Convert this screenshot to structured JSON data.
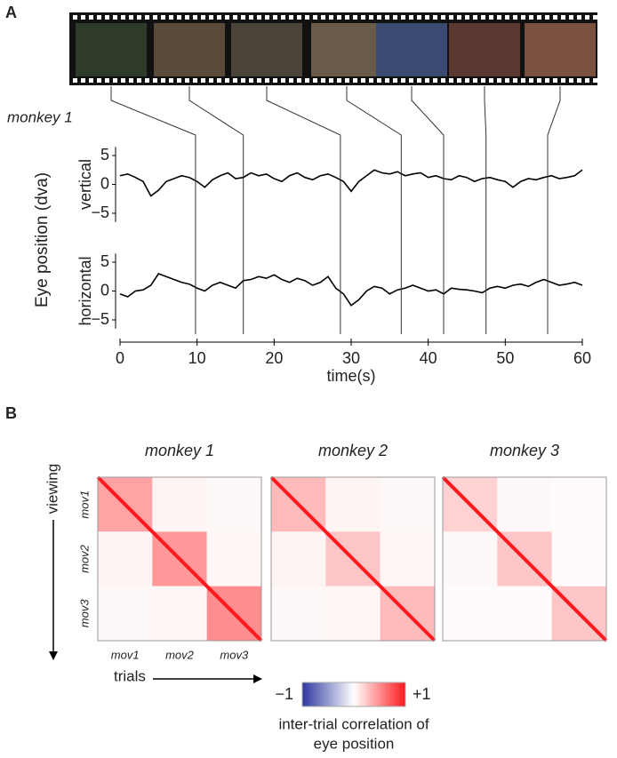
{
  "panel_a": {
    "label": "A",
    "subject": "monkey 1",
    "y_axis_label": "Eye position (dva)",
    "chart_data": {
      "type": "line",
      "xlabel": "time(s)",
      "xlim": [
        0,
        60
      ],
      "xticks": [
        0,
        10,
        20,
        30,
        40,
        50,
        60
      ],
      "event_times": [
        9.8,
        16,
        28.6,
        36.5,
        42,
        47.5,
        55.5
      ],
      "panels": [
        {
          "name": "vertical",
          "ylim": [
            -6.5,
            6.5
          ],
          "yticks": [
            {
              "value": 5,
              "label": "5"
            },
            {
              "value": 0,
              "label": "0"
            },
            {
              "value": -5,
              "label": "−5"
            }
          ],
          "color": "#000",
          "values": [
            1.5,
            1.8,
            1.2,
            0.5,
            -2,
            -1,
            0.5,
            1,
            1.5,
            1.2,
            0.5,
            -0.5,
            0.8,
            1.5,
            2,
            1,
            1.2,
            2,
            1.5,
            1.8,
            1,
            0.5,
            1.5,
            2,
            1.2,
            0.8,
            1.5,
            1.8,
            1.2,
            0.5,
            -1.2,
            0.5,
            1.5,
            2.5,
            2,
            1.8,
            2.2,
            1.5,
            1.8,
            2,
            1.2,
            1.5,
            1,
            0.8,
            1.5,
            1.2,
            0.5,
            1,
            1.2,
            0.8,
            0.5,
            -0.5,
            0.5,
            1,
            0.8,
            1.2,
            1.5,
            1,
            1.2,
            1.5,
            2.5
          ]
        },
        {
          "name": "horizontal",
          "ylim": [
            -6.5,
            6.5
          ],
          "yticks": [
            {
              "value": 5,
              "label": "5"
            },
            {
              "value": 0,
              "label": "0"
            },
            {
              "value": -5,
              "label": "−5"
            }
          ],
          "color": "#000",
          "values": [
            -0.5,
            -1,
            0,
            0.2,
            1,
            3,
            2.5,
            2,
            1.5,
            1.2,
            0.5,
            0,
            1,
            1.5,
            1,
            0.5,
            1.8,
            2,
            2.5,
            2.2,
            2.8,
            2,
            1.5,
            2.2,
            1.8,
            1,
            1.5,
            2.5,
            0.5,
            -0.5,
            -2.5,
            -1.5,
            0,
            0.8,
            0.5,
            -0.5,
            0.2,
            0.5,
            1,
            0.5,
            0,
            0.2,
            -0.5,
            0.5,
            0.3,
            0.2,
            0,
            -0.3,
            0.5,
            0.8,
            0.5,
            1,
            1.2,
            0.8,
            1.5,
            2,
            1.5,
            1,
            1.2,
            1.5,
            1
          ]
        }
      ]
    }
  },
  "panel_b": {
    "label": "B",
    "row_label": "viewing",
    "col_label": "trials",
    "movies": [
      "mov1",
      "mov2",
      "mov3"
    ],
    "matrices": [
      {
        "title": "monkey 1",
        "block_values": [
          [
            0.4,
            0.05,
            0.03
          ],
          [
            0.05,
            0.45,
            0.04
          ],
          [
            0.03,
            0.04,
            0.5
          ]
        ],
        "diagonal": 1
      },
      {
        "title": "monkey 2",
        "block_values": [
          [
            0.3,
            0.05,
            0.03
          ],
          [
            0.05,
            0.25,
            0.04
          ],
          [
            0.03,
            0.04,
            0.3
          ]
        ],
        "diagonal": 1
      },
      {
        "title": "monkey 3",
        "block_values": [
          [
            0.2,
            0.03,
            0.02
          ],
          [
            0.03,
            0.25,
            0.02
          ],
          [
            0.02,
            0.02,
            0.25
          ]
        ],
        "diagonal": 1
      }
    ],
    "colorbar": {
      "min": {
        "value": -1,
        "label": "−1"
      },
      "max": {
        "value": 1,
        "label": "+1"
      },
      "caption": [
        "inter-trial correlation of",
        "eye position"
      ]
    }
  }
}
